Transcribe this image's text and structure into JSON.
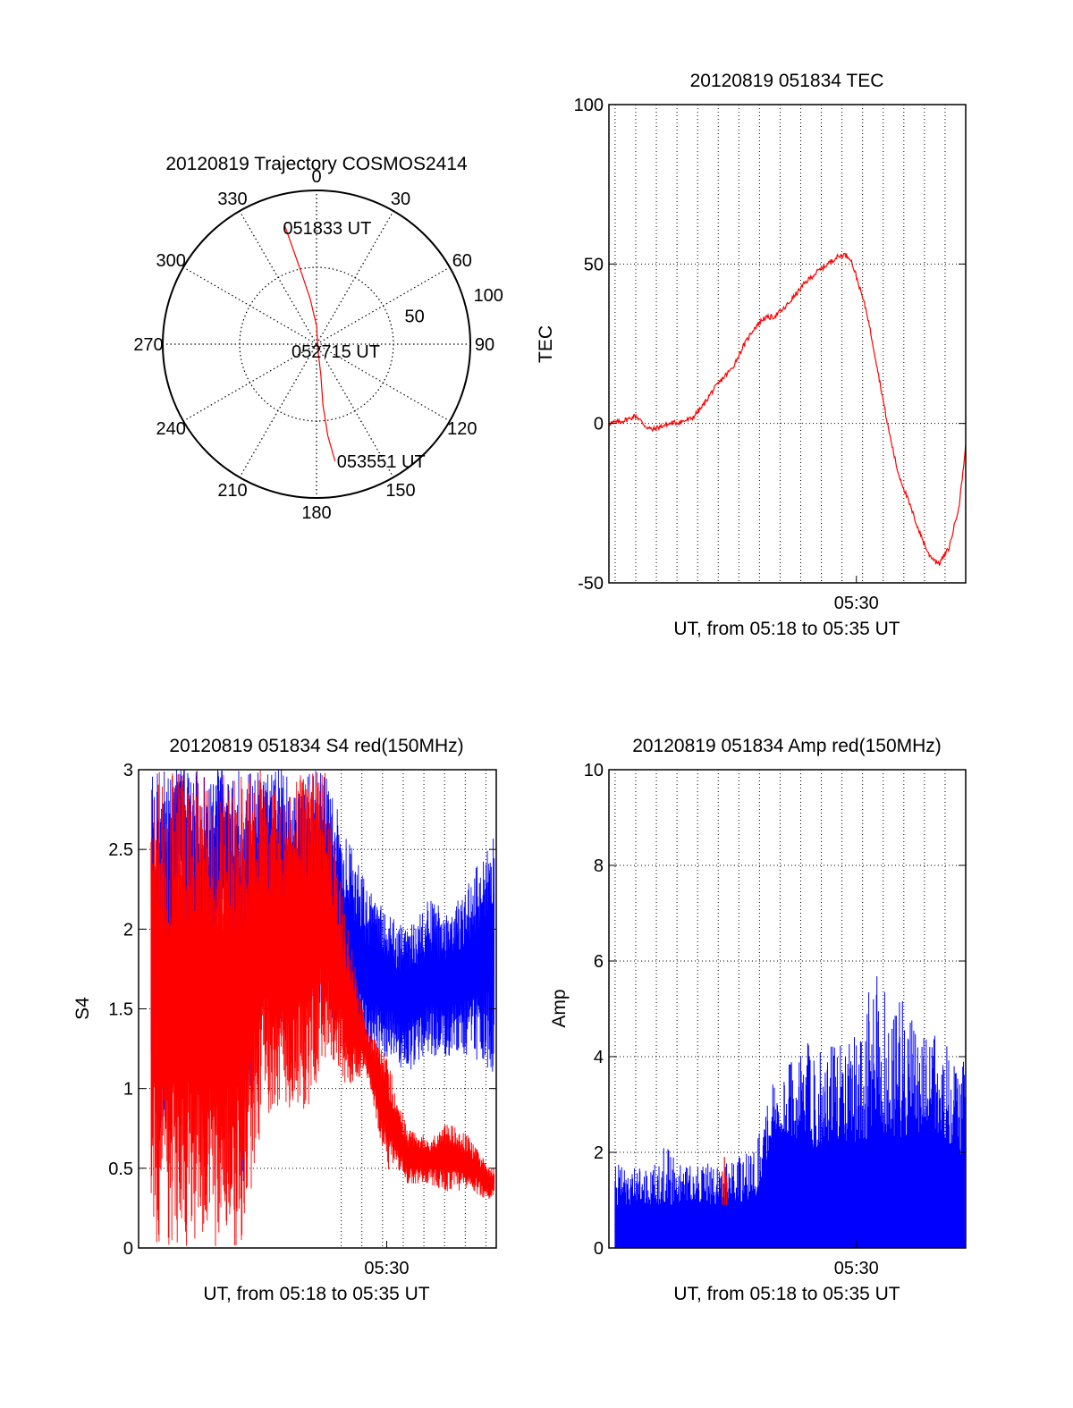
{
  "colors": {
    "red": "#ff0000",
    "blue": "#0000ff",
    "axis": "#000000",
    "grid": "#000000"
  },
  "chart_data": [
    {
      "type": "polar",
      "title": "20120819 Trajectory COSMOS2414",
      "angle_labels": [
        "0",
        "30",
        "60",
        "90",
        "120",
        "150",
        "180",
        "210",
        "240",
        "270",
        "300",
        "330"
      ],
      "angle_values": [
        0,
        30,
        60,
        90,
        120,
        150,
        180,
        210,
        240,
        270,
        300,
        330
      ],
      "radius_labels": [
        "50",
        "100"
      ],
      "radius_values": [
        50,
        100
      ],
      "rlim": [
        0,
        100
      ],
      "radius_meaning": "90 - elevation",
      "annotations": [
        {
          "text": "051833 UT",
          "point": "start"
        },
        {
          "text": "052715 UT",
          "point": "mid"
        },
        {
          "text": "053551 UT",
          "point": "end"
        }
      ],
      "series": [
        {
          "color": "red",
          "points": [
            {
              "az": 345,
              "r": 80
            },
            {
              "az": 346,
              "r": 65
            },
            {
              "az": 348,
              "r": 48
            },
            {
              "az": 352,
              "r": 30
            },
            {
              "az": 0,
              "r": 12
            },
            {
              "az": 168,
              "r": 5
            },
            {
              "az": 172,
              "r": 20
            },
            {
              "az": 174,
              "r": 40
            },
            {
              "az": 173,
              "r": 60
            },
            {
              "az": 171,
              "r": 77
            }
          ]
        }
      ]
    },
    {
      "type": "line",
      "title": "20120819 051834 TEC",
      "ylabel": "TEC",
      "xlabel": "UT, from 05:18 to 05:35 UT",
      "xlim": [
        0,
        17.3
      ],
      "ylim": [
        -50,
        100
      ],
      "yticks": [
        -50,
        0,
        50,
        100
      ],
      "xtick_labels": [
        {
          "x": 12,
          "label": "05:30"
        }
      ],
      "xgrid": [
        0.3,
        1.3,
        2.3,
        3.3,
        4.3,
        5.3,
        6.3,
        7.3,
        8.3,
        9.3,
        10.3,
        11.3,
        12.3,
        13.3,
        14.3,
        15.3,
        16.3,
        17.3
      ],
      "series": [
        {
          "color": "red",
          "x": [
            0.0,
            0.5,
            1.0,
            1.3,
            1.8,
            2.1,
            2.5,
            3.0,
            3.5,
            4.0,
            4.5,
            5.0,
            5.5,
            6.0,
            6.5,
            7.0,
            7.5,
            8.0,
            8.5,
            9.0,
            9.5,
            10.0,
            10.5,
            11.0,
            11.4,
            11.7,
            12.0,
            12.5,
            13.0,
            13.5,
            14.0,
            14.5,
            15.0,
            15.5,
            16.0,
            16.5,
            17.0,
            17.3
          ],
          "y": [
            0.0,
            0.5,
            1.5,
            2.5,
            -1.0,
            -2.0,
            -1.0,
            0.0,
            0.5,
            1.5,
            5.0,
            10.0,
            14.0,
            17.5,
            24.0,
            29.5,
            33.0,
            33.5,
            36.0,
            40.0,
            44.0,
            47.0,
            49.5,
            52.0,
            53.0,
            52.0,
            46.0,
            35.0,
            18.0,
            0.0,
            -15.0,
            -24.0,
            -33.0,
            -41.0,
            -44.0,
            -39.0,
            -25.0,
            -7.0
          ]
        }
      ]
    },
    {
      "type": "line",
      "title": "20120819 051834 S4 red(150MHz)",
      "ylabel": "S4",
      "xlabel": "UT, from 05:18 to 05:35 UT",
      "xlim": [
        0,
        17.3
      ],
      "ylim": [
        0,
        3
      ],
      "yticks": [
        0,
        0.5,
        1,
        1.5,
        2,
        2.5,
        3
      ],
      "ytick_labels": [
        "0",
        "0.5",
        "1",
        "1.5",
        "2",
        "2.5",
        "3"
      ],
      "xtick_labels": [
        {
          "x": 12,
          "label": "05:30"
        }
      ],
      "xgrid": [
        9.8,
        10.8,
        11.8,
        12.8,
        13.8,
        14.8,
        15.8,
        16.8
      ],
      "series": [
        {
          "color": "blue",
          "x": [
            0,
            1,
            2,
            3,
            4,
            5,
            6,
            7,
            8,
            9,
            10,
            11,
            12,
            13,
            14,
            15,
            16,
            17
          ],
          "lower": [
            2.1,
            0.4,
            2.4,
            0.6,
            2.2,
            0.3,
            1.9,
            1.2,
            1.6,
            1.5,
            1.3,
            1.2,
            1.2,
            1.1,
            1.2,
            1.2,
            1.2,
            1.1
          ],
          "upper": [
            3.0,
            3.0,
            3.0,
            3.0,
            3.0,
            3.0,
            3.0,
            3.0,
            3.0,
            3.0,
            2.6,
            2.3,
            2.1,
            2.0,
            2.2,
            2.1,
            2.3,
            2.6
          ]
        },
        {
          "color": "red",
          "x": [
            0,
            1,
            2,
            3,
            4,
            5,
            6,
            7,
            8,
            9,
            10,
            11,
            12,
            13,
            14,
            15,
            16,
            17
          ],
          "lower": [
            0.0,
            0.0,
            0.0,
            0.0,
            0.0,
            0.0,
            0.8,
            0.9,
            0.8,
            1.2,
            1.0,
            1.1,
            0.5,
            0.4,
            0.4,
            0.35,
            0.35,
            0.3
          ],
          "upper": [
            3.0,
            3.0,
            3.0,
            3.0,
            3.0,
            3.0,
            3.0,
            2.8,
            3.0,
            3.0,
            2.1,
            1.4,
            1.2,
            0.75,
            0.7,
            0.8,
            0.7,
            0.5
          ]
        }
      ]
    },
    {
      "type": "bar",
      "title": "20120819 051834 Amp red(150MHz)",
      "ylabel": "Amp",
      "xlabel": "UT, from 05:18 to 05:35 UT",
      "xlim": [
        0,
        17.3
      ],
      "ylim": [
        0,
        10
      ],
      "yticks": [
        0,
        2,
        4,
        6,
        8,
        10
      ],
      "xtick_labels": [
        {
          "x": 12,
          "label": "05:30"
        }
      ],
      "xgrid": [
        0.3,
        1.3,
        2.3,
        3.3,
        4.3,
        5.3,
        6.3,
        7.3,
        8.3,
        9.3,
        10.3,
        11.3,
        12.3,
        13.3,
        14.3,
        15.3,
        16.3,
        17.3
      ],
      "series": [
        {
          "color": "blue",
          "x": [
            0,
            1,
            2,
            3,
            4,
            5,
            6,
            7,
            8,
            9,
            10,
            11,
            12,
            13,
            14,
            15,
            16,
            17
          ],
          "base": [
            0.8,
            0.9,
            0.9,
            0.9,
            1.0,
            0.9,
            1.0,
            0.9,
            2.3,
            2.3,
            2.0,
            2.3,
            2.1,
            2.4,
            2.3,
            2.4,
            2.4,
            1.9
          ],
          "peak": [
            1.7,
            1.8,
            1.6,
            2.4,
            1.7,
            1.8,
            1.8,
            2.1,
            3.6,
            4.1,
            4.5,
            4.3,
            4.7,
            5.8,
            5.4,
            4.6,
            4.4,
            4.0
          ]
        },
        {
          "color": "red",
          "x": [
            5.5,
            5.6,
            5.7
          ],
          "peak": [
            1.6,
            1.9,
            1.5
          ]
        }
      ]
    }
  ]
}
